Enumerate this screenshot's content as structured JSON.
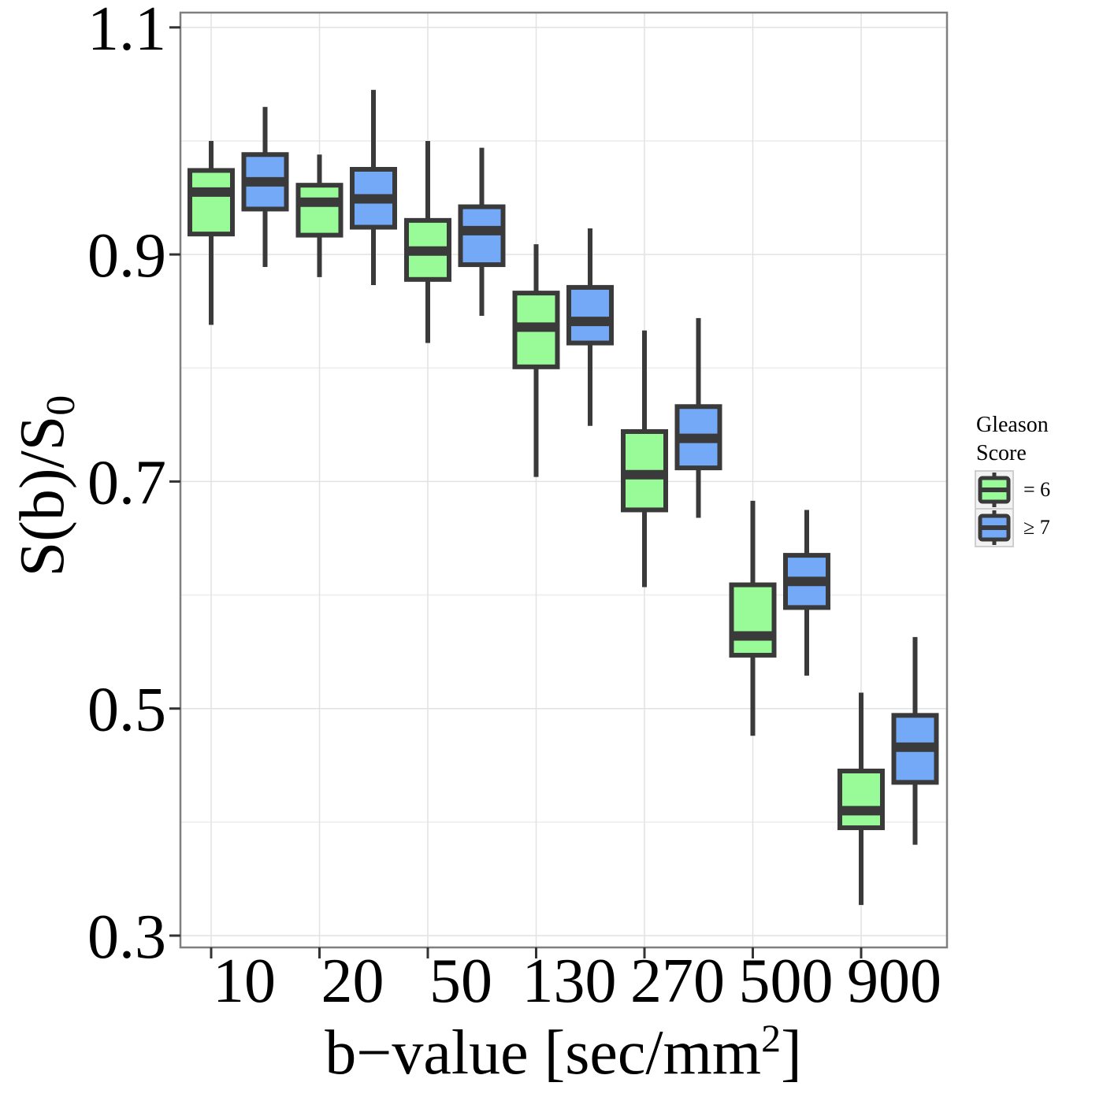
{
  "chart_data": {
    "type": "boxplot",
    "xlabel": "b−value [sec/mm",
    "xlabel_sup": "2",
    "xlabel_end": "]",
    "ylabel": "S(b)/S",
    "ylabel_sub": "0",
    "ylim": [
      0.293,
      1.12
    ],
    "y_ticks": [
      "0.3",
      "0.5",
      "0.7",
      "0.9",
      "1.1"
    ],
    "y_minor_ticks": [
      0.4,
      0.6,
      0.8,
      1.0
    ],
    "grid": true,
    "legend_position": "right",
    "categories": [
      "10",
      "20",
      "50",
      "130",
      "270",
      "500",
      "900"
    ],
    "series": [
      {
        "name": "= 6",
        "color": "#98fb98",
        "boxes": [
          {
            "whisker_low": 0.838,
            "q1": 0.918,
            "median": 0.955,
            "q3": 0.974,
            "whisker_high": 1.0
          },
          {
            "whisker_low": 0.88,
            "q1": 0.917,
            "median": 0.946,
            "q3": 0.961,
            "whisker_high": 0.988
          },
          {
            "whisker_low": 0.822,
            "q1": 0.878,
            "median": 0.903,
            "q3": 0.93,
            "whisker_high": 1.0
          },
          {
            "whisker_low": 0.704,
            "q1": 0.801,
            "median": 0.836,
            "q3": 0.866,
            "whisker_high": 0.909
          },
          {
            "whisker_low": 0.607,
            "q1": 0.675,
            "median": 0.706,
            "q3": 0.744,
            "whisker_high": 0.833
          },
          {
            "whisker_low": 0.476,
            "q1": 0.547,
            "median": 0.564,
            "q3": 0.609,
            "whisker_high": 0.683
          },
          {
            "whisker_low": 0.327,
            "q1": 0.395,
            "median": 0.41,
            "q3": 0.445,
            "whisker_high": 0.514
          }
        ]
      },
      {
        "name": "≥ 7",
        "color": "#74a9f7",
        "boxes": [
          {
            "whisker_low": 0.889,
            "q1": 0.94,
            "median": 0.964,
            "q3": 0.988,
            "whisker_high": 1.03
          },
          {
            "whisker_low": 0.873,
            "q1": 0.924,
            "median": 0.949,
            "q3": 0.975,
            "whisker_high": 1.045
          },
          {
            "whisker_low": 0.846,
            "q1": 0.891,
            "median": 0.921,
            "q3": 0.942,
            "whisker_high": 0.994
          },
          {
            "whisker_low": 0.749,
            "q1": 0.822,
            "median": 0.841,
            "q3": 0.871,
            "whisker_high": 0.923
          },
          {
            "whisker_low": 0.668,
            "q1": 0.712,
            "median": 0.738,
            "q3": 0.766,
            "whisker_high": 0.844
          },
          {
            "whisker_low": 0.529,
            "q1": 0.589,
            "median": 0.612,
            "q3": 0.635,
            "whisker_high": 0.675
          },
          {
            "whisker_low": 0.38,
            "q1": 0.435,
            "median": 0.466,
            "q3": 0.494,
            "whisker_high": 0.563
          }
        ]
      }
    ],
    "legend_title_lines": [
      "Gleason",
      "Score"
    ],
    "colors": {
      "outline": "#3a3a3a",
      "grid_major": "#e2e2e2",
      "grid_minor": "#f0f0f0",
      "panel_border": "#7f7f7f",
      "legend_key_border": "#cfcfcf"
    }
  }
}
